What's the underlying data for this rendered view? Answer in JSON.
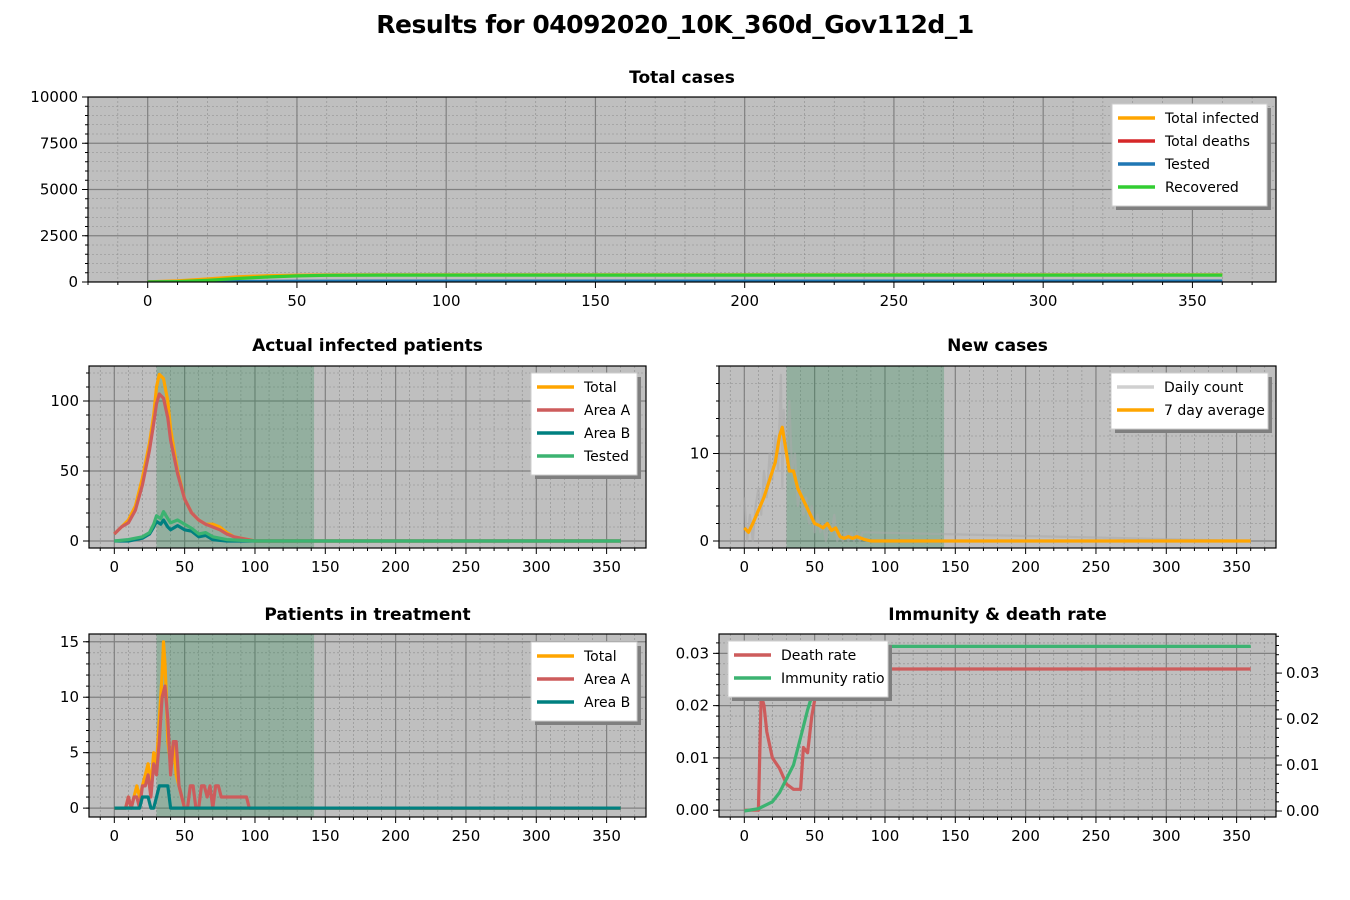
{
  "title": "Results for 04092020_10K_360d_Gov112d_1",
  "colors": {
    "plot_bg": "#bfbfbf",
    "grid_major": "#808080",
    "grid_minor": "#8c8c8c",
    "shade": "#2e8b57",
    "orange": "#ffa500",
    "indianred": "#cd5c5c",
    "teal": "#008080",
    "mediumseagreen": "#3cb371",
    "red": "#d62728",
    "blue": "#1f77b4",
    "limegreen": "#32cd32",
    "darkgray": "#a9a9a9"
  },
  "chart_data": [
    {
      "id": "total",
      "type": "line",
      "title": "Total cases",
      "xlim": [
        -20,
        378
      ],
      "ylim": [
        0,
        10000
      ],
      "xticks": [
        0,
        50,
        100,
        150,
        200,
        250,
        300,
        350
      ],
      "yticks": [
        0,
        2500,
        5000,
        7500,
        10000
      ],
      "grid": true,
      "legend_position": "top-right",
      "series": [
        {
          "name": "Total infected",
          "color": "orange",
          "x": [
            0,
            10,
            20,
            30,
            40,
            50,
            60,
            80,
            100,
            150,
            200,
            250,
            300,
            360
          ],
          "values": [
            5,
            60,
            160,
            280,
            340,
            370,
            380,
            385,
            385,
            385,
            385,
            385,
            385,
            385
          ]
        },
        {
          "name": "Total deaths",
          "color": "red",
          "x": [
            0,
            30,
            50,
            100,
            360
          ],
          "values": [
            0,
            2,
            8,
            10,
            10
          ]
        },
        {
          "name": "Tested",
          "color": "blue",
          "x": [
            0,
            30,
            50,
            100,
            360
          ],
          "values": [
            0,
            20,
            45,
            50,
            50
          ]
        },
        {
          "name": "Recovered",
          "color": "limegreen",
          "x": [
            0,
            10,
            20,
            30,
            40,
            50,
            60,
            80,
            100,
            150,
            200,
            250,
            300,
            360
          ],
          "values": [
            0,
            20,
            90,
            190,
            270,
            330,
            360,
            375,
            375,
            375,
            375,
            375,
            375,
            375
          ]
        }
      ]
    },
    {
      "id": "actual",
      "type": "line",
      "title": "Actual infected patients",
      "xlim": [
        -18,
        378
      ],
      "ylim": [
        -5,
        125
      ],
      "xticks": [
        0,
        50,
        100,
        150,
        200,
        250,
        300,
        350
      ],
      "yticks": [
        0,
        50,
        100
      ],
      "grid": true,
      "shaded_x": [
        30,
        142
      ],
      "legend_position": "top-right",
      "series": [
        {
          "name": "Total",
          "color": "orange",
          "x": [
            0,
            5,
            10,
            15,
            20,
            25,
            28,
            30,
            32,
            35,
            38,
            40,
            45,
            50,
            55,
            60,
            65,
            70,
            75,
            80,
            85,
            90,
            95,
            100,
            360
          ],
          "values": [
            5,
            10,
            15,
            25,
            45,
            70,
            90,
            110,
            119,
            116,
            100,
            80,
            50,
            30,
            20,
            15,
            12,
            12,
            10,
            6,
            3,
            2,
            1,
            0,
            0
          ]
        },
        {
          "name": "Area A",
          "color": "indianred",
          "x": [
            0,
            5,
            10,
            15,
            20,
            25,
            28,
            30,
            32,
            35,
            38,
            40,
            45,
            50,
            55,
            60,
            65,
            70,
            75,
            80,
            85,
            90,
            95,
            100,
            360
          ],
          "values": [
            5,
            10,
            13,
            22,
            40,
            65,
            84,
            98,
            105,
            102,
            88,
            72,
            48,
            30,
            20,
            15,
            12,
            10,
            8,
            5,
            3,
            2,
            1,
            0,
            0
          ]
        },
        {
          "name": "Area B",
          "color": "teal",
          "x": [
            0,
            10,
            20,
            25,
            28,
            30,
            33,
            35,
            38,
            40,
            45,
            50,
            55,
            60,
            65,
            70,
            80,
            100,
            360
          ],
          "values": [
            0,
            0,
            2,
            5,
            10,
            14,
            12,
            15,
            10,
            8,
            11,
            8,
            7,
            3,
            4,
            1,
            0,
            0,
            0
          ]
        },
        {
          "name": "Tested",
          "color": "mediumseagreen",
          "x": [
            0,
            10,
            20,
            25,
            28,
            30,
            33,
            35,
            38,
            40,
            45,
            50,
            55,
            60,
            65,
            70,
            80,
            100,
            360
          ],
          "values": [
            0,
            1,
            3,
            6,
            12,
            18,
            16,
            21,
            16,
            13,
            15,
            12,
            9,
            5,
            6,
            3,
            1,
            0,
            0
          ]
        }
      ]
    },
    {
      "id": "newcases",
      "type": "line",
      "title": "New cases",
      "xlim": [
        -18,
        378
      ],
      "ylim": [
        -0.8,
        20
      ],
      "xticks": [
        0,
        50,
        100,
        150,
        200,
        250,
        300,
        350
      ],
      "yticks": [
        0,
        10
      ],
      "grid": true,
      "shaded_x": [
        30,
        142
      ],
      "legend_position": "top-right",
      "series": [
        {
          "name": "Daily count",
          "color": "darkgray",
          "x": [
            0,
            2,
            4,
            6,
            8,
            10,
            12,
            14,
            16,
            18,
            20,
            22,
            24,
            26,
            27,
            28,
            30,
            32,
            34,
            36,
            38,
            40,
            42,
            44,
            46,
            48,
            50,
            52,
            54,
            56,
            58,
            60,
            62,
            64,
            66,
            68,
            70,
            72,
            74,
            76,
            78,
            80,
            82,
            84,
            360
          ],
          "values": [
            5,
            0,
            3,
            0,
            4,
            6,
            3,
            8,
            5,
            10,
            7,
            12,
            8,
            19,
            6,
            15,
            10,
            16,
            8,
            10,
            4,
            6,
            3,
            5,
            2,
            4,
            1,
            3,
            1,
            2,
            0,
            2,
            1,
            3,
            0,
            1,
            0,
            1,
            0,
            1,
            0,
            1,
            0,
            1,
            0
          ]
        },
        {
          "name": "7 day average",
          "color": "orange",
          "x": [
            0,
            3,
            6,
            10,
            14,
            18,
            22,
            25,
            27,
            29,
            32,
            35,
            38,
            41,
            44,
            47,
            50,
            53,
            56,
            59,
            62,
            65,
            68,
            71,
            74,
            77,
            80,
            85,
            90,
            360
          ],
          "values": [
            1.5,
            1,
            2,
            3.5,
            5,
            7,
            9,
            12,
            13,
            11,
            8,
            8,
            6,
            5,
            4,
            3,
            2,
            1.8,
            1.5,
            2,
            1.2,
            1.5,
            0.5,
            0.3,
            0.5,
            0.3,
            0.5,
            0.2,
            0,
            0
          ]
        }
      ]
    },
    {
      "id": "treatment",
      "type": "line",
      "title": "Patients in treatment",
      "xlim": [
        -18,
        378
      ],
      "ylim": [
        -0.8,
        15.7
      ],
      "xticks": [
        0,
        50,
        100,
        150,
        200,
        250,
        300,
        350
      ],
      "yticks": [
        0,
        5,
        10,
        15
      ],
      "grid": true,
      "shaded_x": [
        30,
        142
      ],
      "legend_position": "top-right",
      "series": [
        {
          "name": "Total",
          "color": "orange",
          "x": [
            0,
            8,
            10,
            12,
            14,
            16,
            18,
            20,
            22,
            24,
            26,
            28,
            30,
            32,
            34,
            35,
            36,
            37,
            38,
            40,
            42,
            44,
            46,
            48,
            50,
            360
          ],
          "values": [
            0,
            0,
            1,
            0,
            1,
            2,
            1,
            2,
            3,
            4,
            2,
            5,
            4,
            8,
            12,
            15,
            13,
            10,
            6,
            4,
            6,
            3,
            2,
            1,
            0,
            0
          ]
        },
        {
          "name": "Area A",
          "color": "indianred",
          "x": [
            0,
            8,
            10,
            12,
            14,
            16,
            18,
            20,
            22,
            24,
            26,
            28,
            30,
            32,
            34,
            36,
            38,
            40,
            42,
            44,
            46,
            48,
            50,
            52,
            54,
            56,
            58,
            60,
            62,
            64,
            66,
            68,
            70,
            72,
            74,
            76,
            78,
            80,
            82,
            84,
            86,
            88,
            90,
            92,
            94,
            96,
            98,
            360
          ],
          "values": [
            0,
            0,
            1,
            0,
            1,
            1,
            0,
            2,
            2,
            3,
            1,
            4,
            3,
            6,
            10,
            11,
            8,
            3,
            6,
            6,
            2,
            1,
            0,
            0,
            2,
            2,
            0,
            0,
            2,
            2,
            1,
            2,
            0,
            2,
            2,
            1,
            1,
            1,
            1,
            1,
            1,
            1,
            1,
            1,
            1,
            0,
            0,
            0
          ]
        },
        {
          "name": "Area B",
          "color": "teal",
          "x": [
            0,
            18,
            20,
            22,
            24,
            26,
            28,
            30,
            32,
            34,
            36,
            38,
            40,
            42,
            360
          ],
          "values": [
            0,
            0,
            1,
            1,
            1,
            0,
            0,
            1,
            2,
            2,
            2,
            2,
            0,
            0,
            0
          ]
        }
      ]
    },
    {
      "id": "immunity",
      "type": "line",
      "title": "Immunity & death rate",
      "xlim": [
        -18,
        378
      ],
      "ylim": [
        -0.0013,
        0.0337
      ],
      "ylim_right": [
        -0.0013,
        0.0385
      ],
      "xticks": [
        0,
        50,
        100,
        150,
        200,
        250,
        300,
        350
      ],
      "yticks": [
        0.0,
        0.01,
        0.02,
        0.03
      ],
      "yticks_right": [
        0.0,
        0.01,
        0.02,
        0.03
      ],
      "grid": true,
      "legend_position": "top-left",
      "series": [
        {
          "name": "Death rate",
          "color": "indianred",
          "axis": "left",
          "x": [
            0,
            5,
            10,
            12,
            14,
            16,
            20,
            25,
            30,
            35,
            40,
            42,
            45,
            48,
            50,
            55,
            60,
            70,
            90,
            360
          ],
          "values": [
            0,
            0,
            0,
            0.022,
            0.02,
            0.015,
            0.01,
            0.008,
            0.005,
            0.004,
            0.004,
            0.012,
            0.011,
            0.018,
            0.021,
            0.024,
            0.026,
            0.027,
            0.027,
            0.027
          ]
        },
        {
          "name": "Immunity ratio",
          "color": "mediumseagreen",
          "axis": "right",
          "x": [
            0,
            10,
            20,
            25,
            30,
            35,
            40,
            45,
            50,
            55,
            60,
            65,
            70,
            80,
            90,
            360
          ],
          "values": [
            0,
            0.0005,
            0.002,
            0.004,
            0.007,
            0.01,
            0.016,
            0.022,
            0.027,
            0.03,
            0.032,
            0.0335,
            0.035,
            0.0358,
            0.0358,
            0.0358
          ]
        }
      ]
    }
  ]
}
